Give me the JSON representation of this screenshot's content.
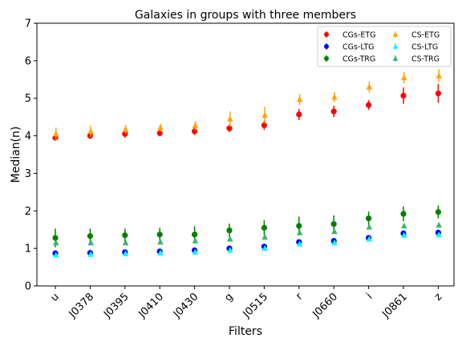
{
  "chart_data": {
    "type": "scatter",
    "title": "Galaxies in groups with three members",
    "xlabel": "Filters",
    "ylabel": "Median(n)",
    "ylim": [
      0,
      7
    ],
    "yticks": [
      0,
      1,
      2,
      3,
      4,
      5,
      6,
      7
    ],
    "categories": [
      "u",
      "J0378",
      "J0395",
      "J0410",
      "J0430",
      "g",
      "J0515",
      "r",
      "J0660",
      "i",
      "J0861",
      "z"
    ],
    "legend_position": "top-right",
    "grid": false,
    "series": [
      {
        "name": "CGs-ETG",
        "color": "#ff0000",
        "marker": "circle",
        "offset": 0,
        "values": [
          3.95,
          4.0,
          4.05,
          4.07,
          4.12,
          4.2,
          4.28,
          4.57,
          4.65,
          4.82,
          5.07,
          5.13
        ],
        "errors": [
          0.08,
          0.08,
          0.1,
          0.08,
          0.1,
          0.1,
          0.12,
          0.15,
          0.15,
          0.13,
          0.22,
          0.25
        ]
      },
      {
        "name": "CS-ETG",
        "color": "#ffa500",
        "marker": "triangle",
        "offset": 1,
        "values": [
          4.05,
          4.12,
          4.17,
          4.22,
          4.27,
          4.45,
          4.55,
          4.97,
          5.03,
          5.3,
          5.55,
          5.6
        ],
        "errors": [
          0.17,
          0.15,
          0.12,
          0.1,
          0.12,
          0.2,
          0.22,
          0.15,
          0.13,
          0.15,
          0.15,
          0.17
        ]
      },
      {
        "name": "CGs-LTG",
        "color": "#0000ff",
        "marker": "circle",
        "offset": 0,
        "values": [
          0.87,
          0.88,
          0.9,
          0.92,
          0.95,
          1.0,
          1.05,
          1.17,
          1.2,
          1.28,
          1.4,
          1.42
        ],
        "errors": [
          0.05,
          0.05,
          0.05,
          0.05,
          0.05,
          0.05,
          0.06,
          0.06,
          0.06,
          0.07,
          0.08,
          0.08
        ]
      },
      {
        "name": "CS-LTG",
        "color": "#00ffff",
        "marker": "triangle",
        "offset": 1,
        "values": [
          0.82,
          0.84,
          0.86,
          0.88,
          0.9,
          0.95,
          1.0,
          1.12,
          1.15,
          1.25,
          1.35,
          1.36
        ],
        "errors": [
          0.04,
          0.04,
          0.04,
          0.04,
          0.04,
          0.04,
          0.05,
          0.05,
          0.05,
          0.05,
          0.06,
          0.06
        ]
      },
      {
        "name": "CGs-TRG",
        "color": "#008000",
        "marker": "circle",
        "offset": 0,
        "values": [
          1.28,
          1.33,
          1.35,
          1.37,
          1.37,
          1.48,
          1.55,
          1.6,
          1.65,
          1.8,
          1.92,
          1.97
        ],
        "errors": [
          0.25,
          0.2,
          0.18,
          0.18,
          0.22,
          0.18,
          0.2,
          0.25,
          0.23,
          0.18,
          0.2,
          0.17
        ]
      },
      {
        "name": "CS-TRG",
        "color": "#3cb371",
        "marker": "triangle",
        "offset": 1,
        "values": [
          1.15,
          1.15,
          1.15,
          1.17,
          1.2,
          1.25,
          1.3,
          1.42,
          1.45,
          1.57,
          1.6,
          1.62
        ],
        "errors": [
          0.04,
          0.04,
          0.04,
          0.04,
          0.04,
          0.04,
          0.04,
          0.05,
          0.05,
          0.05,
          0.05,
          0.05
        ]
      }
    ]
  }
}
